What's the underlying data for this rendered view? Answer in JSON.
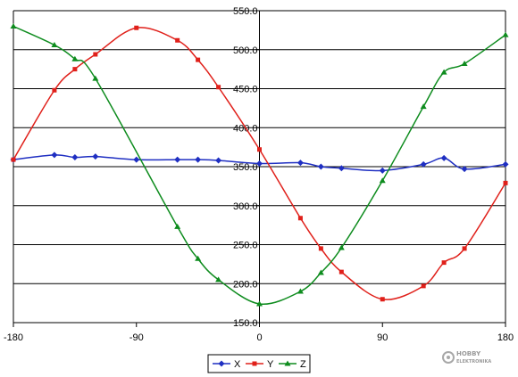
{
  "chart_data": {
    "type": "line",
    "title": "",
    "xlabel": "",
    "ylabel": "",
    "xlim": [
      -180,
      180
    ],
    "ylim": [
      150,
      550
    ],
    "x_ticks": [
      -180,
      -90,
      0,
      90,
      180
    ],
    "x_tick_labels": [
      "-180",
      "-90",
      "0",
      "90",
      "180"
    ],
    "y_ticks": [
      150,
      200,
      250,
      300,
      350,
      400,
      450,
      500,
      550
    ],
    "y_tick_labels": [
      "150.0",
      "200.0",
      "250.0",
      "300.0",
      "350.0",
      "400.0",
      "450.0",
      "500.0",
      "550.0"
    ],
    "grid": "horizontal",
    "legend_position": "bottom",
    "series": [
      {
        "name": "X",
        "color": "#1f2fc2",
        "marker": "diamond",
        "points": [
          [
            -180,
            359
          ],
          [
            -150,
            365
          ],
          [
            -135,
            362
          ],
          [
            -120,
            363
          ],
          [
            -90,
            359
          ],
          [
            -60,
            359
          ],
          [
            -45,
            359
          ],
          [
            -30,
            358
          ],
          [
            0,
            354
          ],
          [
            30,
            355
          ],
          [
            45,
            350
          ],
          [
            60,
            348
          ],
          [
            90,
            345
          ],
          [
            120,
            353
          ],
          [
            135,
            361
          ],
          [
            150,
            347
          ],
          [
            180,
            353
          ]
        ]
      },
      {
        "name": "Y",
        "color": "#e0201a",
        "marker": "square",
        "points": [
          [
            -180,
            359
          ],
          [
            -150,
            448
          ],
          [
            -135,
            475
          ],
          [
            -120,
            494
          ],
          [
            -90,
            528
          ],
          [
            -60,
            512
          ],
          [
            -45,
            487
          ],
          [
            -30,
            452
          ],
          [
            0,
            372
          ],
          [
            30,
            284
          ],
          [
            45,
            245
          ],
          [
            60,
            215
          ],
          [
            90,
            180
          ],
          [
            120,
            197
          ],
          [
            135,
            227
          ],
          [
            150,
            245
          ],
          [
            180,
            329
          ]
        ]
      },
      {
        "name": "Z",
        "color": "#0e8c1e",
        "marker": "triangle",
        "points": [
          [
            -180,
            530
          ],
          [
            -150,
            506
          ],
          [
            -135,
            488
          ],
          [
            -120,
            463
          ],
          [
            -60,
            273
          ],
          [
            -45,
            232
          ],
          [
            -30,
            205
          ],
          [
            0,
            174
          ],
          [
            30,
            190
          ],
          [
            45,
            214
          ],
          [
            60,
            246
          ],
          [
            90,
            332
          ],
          [
            120,
            427
          ],
          [
            135,
            471
          ],
          [
            150,
            482
          ],
          [
            180,
            519
          ]
        ]
      }
    ]
  },
  "watermark": {
    "text_line1": "HOBBY",
    "text_line2": "ELEKTRONIKA"
  }
}
